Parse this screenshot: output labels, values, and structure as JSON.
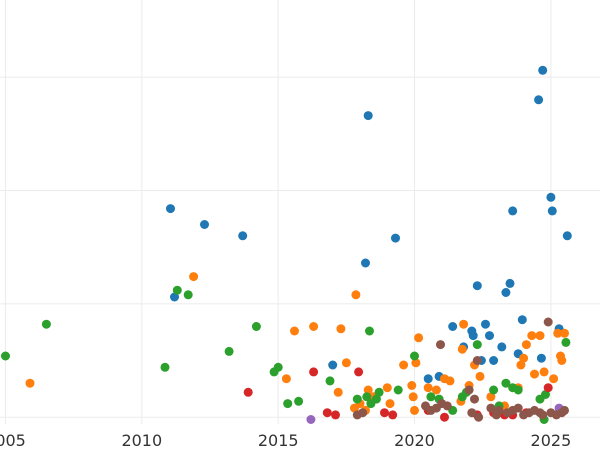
{
  "chart_data": {
    "type": "scatter",
    "title": "",
    "xlabel": "",
    "ylabel": "",
    "grid": true,
    "legend": "none",
    "xlim": [
      2004.8,
      2026.8
    ],
    "ylim": [
      -0.3,
      18.4
    ],
    "x_ticks": [
      2005,
      2010,
      2015,
      2020,
      2025
    ],
    "x_tick_labels": [
      "2005",
      "2010",
      "2015",
      "2020",
      "2025"
    ],
    "y_ticks": [
      0,
      5,
      10,
      15
    ],
    "y_tick_labels": [
      "",
      "",
      "",
      ""
    ],
    "series": [
      {
        "name": "blue",
        "color": "#1f77b4",
        "points": [
          [
            2011.05,
            9.2
          ],
          [
            2011.2,
            5.3
          ],
          [
            2012.3,
            8.5
          ],
          [
            2013.7,
            8.0
          ],
          [
            2017.0,
            2.3
          ],
          [
            2018.2,
            6.8
          ],
          [
            2018.3,
            13.3
          ],
          [
            2019.3,
            7.9
          ],
          [
            2020.5,
            1.7
          ],
          [
            2020.9,
            1.8
          ],
          [
            2021.4,
            4.0
          ],
          [
            2021.8,
            3.1
          ],
          [
            2022.1,
            3.8
          ],
          [
            2022.15,
            3.6
          ],
          [
            2022.3,
            5.8
          ],
          [
            2022.45,
            2.5
          ],
          [
            2022.6,
            4.1
          ],
          [
            2022.75,
            3.6
          ],
          [
            2022.9,
            2.5
          ],
          [
            2023.2,
            3.1
          ],
          [
            2023.35,
            5.5
          ],
          [
            2023.5,
            5.9
          ],
          [
            2023.6,
            9.1
          ],
          [
            2023.8,
            2.8
          ],
          [
            2023.95,
            4.3
          ],
          [
            2024.55,
            14.0
          ],
          [
            2024.65,
            2.6
          ],
          [
            2024.7,
            15.3
          ],
          [
            2025.0,
            9.7
          ],
          [
            2025.05,
            9.1
          ],
          [
            2025.3,
            3.9
          ],
          [
            2025.6,
            8.0
          ]
        ]
      },
      {
        "name": "orange",
        "color": "#ff7f0e",
        "points": [
          [
            2005.9,
            1.5
          ],
          [
            2011.9,
            6.2
          ],
          [
            2015.3,
            1.7
          ],
          [
            2015.6,
            3.8
          ],
          [
            2016.3,
            4.0
          ],
          [
            2017.2,
            1.1
          ],
          [
            2017.3,
            3.9
          ],
          [
            2017.5,
            2.4
          ],
          [
            2017.8,
            0.4
          ],
          [
            2017.85,
            5.4
          ],
          [
            2018.0,
            0.6
          ],
          [
            2018.2,
            0.3
          ],
          [
            2018.3,
            1.2
          ],
          [
            2018.5,
            0.9
          ],
          [
            2019.0,
            1.3
          ],
          [
            2019.1,
            0.6
          ],
          [
            2019.6,
            2.3
          ],
          [
            2019.9,
            1.4
          ],
          [
            2019.95,
            0.9
          ],
          [
            2020.0,
            0.3
          ],
          [
            2020.05,
            2.4
          ],
          [
            2020.15,
            3.5
          ],
          [
            2020.5,
            1.3
          ],
          [
            2020.8,
            1.2
          ],
          [
            2021.1,
            1.7
          ],
          [
            2021.3,
            1.6
          ],
          [
            2021.7,
            0.7
          ],
          [
            2021.75,
            3.0
          ],
          [
            2021.8,
            4.1
          ],
          [
            2022.0,
            1.4
          ],
          [
            2022.2,
            2.3
          ],
          [
            2022.4,
            1.8
          ],
          [
            2022.8,
            0.9
          ],
          [
            2023.3,
            0.5
          ],
          [
            2023.8,
            1.3
          ],
          [
            2023.9,
            2.3
          ],
          [
            2024.0,
            2.6
          ],
          [
            2024.1,
            3.2
          ],
          [
            2024.3,
            3.6
          ],
          [
            2024.4,
            1.9
          ],
          [
            2024.6,
            3.6
          ],
          [
            2024.75,
            2.0
          ],
          [
            2025.1,
            1.7
          ],
          [
            2025.25,
            3.7
          ],
          [
            2025.35,
            2.7
          ],
          [
            2025.4,
            2.5
          ],
          [
            2025.5,
            3.7
          ]
        ]
      },
      {
        "name": "green",
        "color": "#2ca02c",
        "points": [
          [
            2005.0,
            2.7
          ],
          [
            2006.5,
            4.1
          ],
          [
            2010.85,
            2.2
          ],
          [
            2011.3,
            5.6
          ],
          [
            2011.7,
            5.4
          ],
          [
            2013.2,
            2.9
          ],
          [
            2014.2,
            4.0
          ],
          [
            2014.85,
            2.0
          ],
          [
            2015.0,
            2.2
          ],
          [
            2015.35,
            0.6
          ],
          [
            2015.75,
            0.7
          ],
          [
            2016.9,
            1.6
          ],
          [
            2017.9,
            0.8
          ],
          [
            2018.25,
            0.9
          ],
          [
            2018.35,
            3.8
          ],
          [
            2018.4,
            0.6
          ],
          [
            2018.6,
            0.8
          ],
          [
            2018.7,
            1.1
          ],
          [
            2019.4,
            1.2
          ],
          [
            2020.0,
            2.7
          ],
          [
            2020.6,
            0.9
          ],
          [
            2020.9,
            0.8
          ],
          [
            2021.4,
            0.3
          ],
          [
            2021.75,
            0.9
          ],
          [
            2021.9,
            1.1
          ],
          [
            2022.3,
            3.2
          ],
          [
            2022.9,
            1.2
          ],
          [
            2023.1,
            0.5
          ],
          [
            2023.35,
            1.5
          ],
          [
            2023.6,
            1.3
          ],
          [
            2023.8,
            1.2
          ],
          [
            2024.6,
            0.8
          ],
          [
            2024.75,
            -0.1
          ],
          [
            2024.8,
            1.0
          ],
          [
            2025.55,
            3.3
          ]
        ]
      },
      {
        "name": "red",
        "color": "#d62728",
        "points": [
          [
            2013.9,
            1.1
          ],
          [
            2016.3,
            2.0
          ],
          [
            2016.8,
            0.2
          ],
          [
            2017.1,
            0.1
          ],
          [
            2017.95,
            2.0
          ],
          [
            2018.9,
            0.2
          ],
          [
            2019.2,
            0.1
          ],
          [
            2020.5,
            0.3
          ],
          [
            2021.1,
            0.0
          ],
          [
            2022.3,
            0.1
          ],
          [
            2022.9,
            0.2
          ],
          [
            2023.3,
            0.1
          ],
          [
            2023.6,
            0.1
          ],
          [
            2024.1,
            0.2
          ],
          [
            2024.9,
            1.3
          ]
        ]
      },
      {
        "name": "purple",
        "color": "#9467bd",
        "points": [
          [
            2016.2,
            -0.1
          ],
          [
            2025.3,
            0.4
          ]
        ]
      },
      {
        "name": "brown",
        "color": "#8c564b",
        "points": [
          [
            2017.9,
            0.1
          ],
          [
            2018.1,
            0.2
          ],
          [
            2020.4,
            0.5
          ],
          [
            2020.6,
            0.3
          ],
          [
            2020.8,
            0.4
          ],
          [
            2020.95,
            3.2
          ],
          [
            2021.0,
            0.6
          ],
          [
            2021.2,
            0.5
          ],
          [
            2022.0,
            1.2
          ],
          [
            2022.1,
            0.2
          ],
          [
            2022.2,
            0.8
          ],
          [
            2022.3,
            2.5
          ],
          [
            2022.35,
            0.0
          ],
          [
            2022.8,
            0.4
          ],
          [
            2023.0,
            0.1
          ],
          [
            2023.1,
            0.3
          ],
          [
            2023.4,
            0.2
          ],
          [
            2023.6,
            0.3
          ],
          [
            2023.8,
            0.4
          ],
          [
            2024.0,
            0.1
          ],
          [
            2024.2,
            0.2
          ],
          [
            2024.4,
            0.3
          ],
          [
            2024.6,
            0.2
          ],
          [
            2024.7,
            0.1
          ],
          [
            2024.9,
            4.2
          ],
          [
            2025.0,
            0.2
          ],
          [
            2025.2,
            0.1
          ],
          [
            2025.4,
            0.2
          ],
          [
            2025.5,
            0.3
          ]
        ]
      }
    ]
  }
}
